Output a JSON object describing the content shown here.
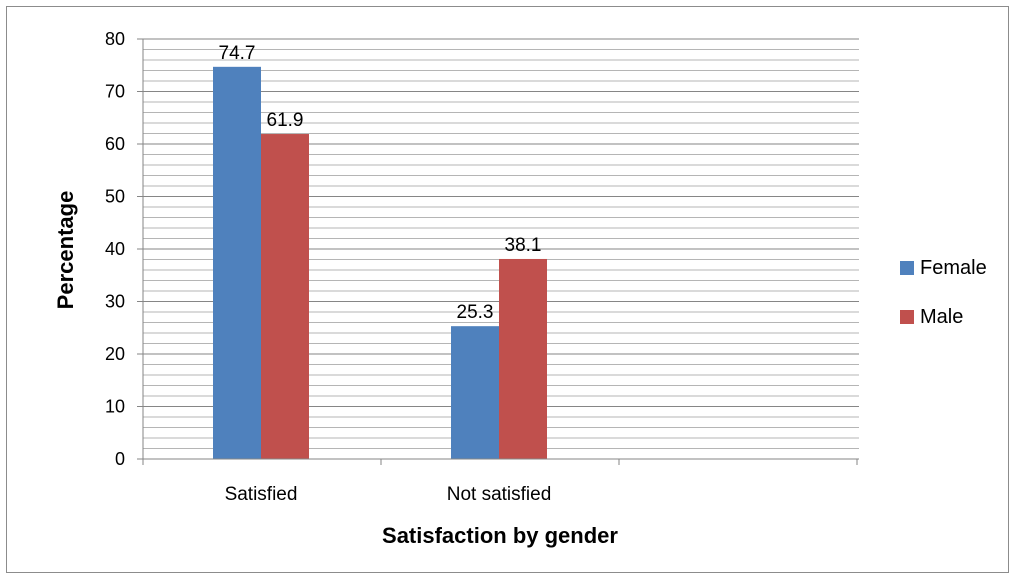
{
  "chart_data": {
    "type": "bar",
    "categories": [
      "Satisfied",
      "Not satisfied"
    ],
    "series": [
      {
        "name": "Female",
        "values": [
          74.7,
          25.3
        ],
        "color": "#4F81BD"
      },
      {
        "name": "Male",
        "values": [
          61.9,
          38.1
        ],
        "color": "#C0504D"
      }
    ],
    "xlabel": "Satisfaction by gender",
    "ylabel": "Percentage",
    "ylim": [
      0,
      80
    ],
    "yticks": [
      0,
      10,
      20,
      30,
      40,
      50,
      60,
      70,
      80
    ],
    "grid": true,
    "legend_position": "right"
  }
}
